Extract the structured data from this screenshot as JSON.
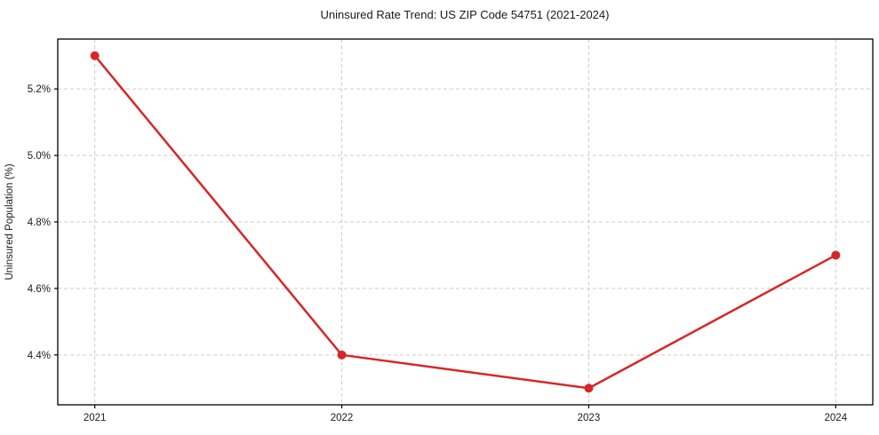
{
  "chart_data": {
    "type": "line",
    "title": "Uninsured Rate Trend: US ZIP Code 54751 (2021-2024)",
    "xlabel": "",
    "ylabel": "Uninsured Population (%)",
    "x": [
      2021,
      2022,
      2023,
      2024
    ],
    "x_tick_labels": [
      "2021",
      "2022",
      "2023",
      "2024"
    ],
    "series": [
      {
        "name": "Uninsured rate",
        "values": [
          5.3,
          4.4,
          4.3,
          4.7
        ],
        "color": "#d62728",
        "marker": "circle"
      }
    ],
    "y_ticks": [
      4.4,
      4.6,
      4.8,
      5.0,
      5.2
    ],
    "y_tick_labels": [
      "4.4%",
      "4.6%",
      "4.8%",
      "5.0%",
      "5.2%"
    ],
    "xlim": [
      2020.85,
      2024.15
    ],
    "ylim": [
      4.25,
      5.35
    ],
    "grid": true,
    "grid_style": "dashed",
    "grid_color": "#cccccc",
    "axis_color": "#000000",
    "text_color": "#1a1a1a",
    "legend_position": "none",
    "background": "#ffffff"
  }
}
